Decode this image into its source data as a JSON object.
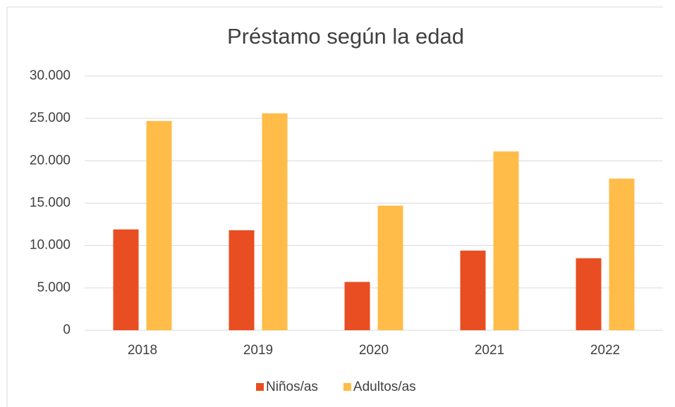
{
  "chart_data": {
    "type": "bar",
    "title": "Préstamo según la edad",
    "categories": [
      "2018",
      "2019",
      "2020",
      "2021",
      "2022"
    ],
    "series": [
      {
        "name": "Niños/as",
        "color": "#e84e22",
        "values": [
          11900,
          11800,
          5700,
          9400,
          8500
        ]
      },
      {
        "name": "Adultos/as",
        "color": "#ffbc48",
        "values": [
          24700,
          25600,
          14700,
          21100,
          17900
        ]
      }
    ],
    "ylim": [
      0,
      30000
    ],
    "yticks": [
      0,
      {
        "value": 5000,
        "label": "5.000"
      },
      {
        "value": 10000,
        "label": "10.000"
      },
      {
        "value": 15000,
        "label": "15.000"
      },
      {
        "value": 20000,
        "label": "20.000"
      },
      {
        "value": 25000,
        "label": "25.000"
      },
      {
        "value": 30000,
        "label": "30.000"
      }
    ],
    "grid": true,
    "legend": "bottom"
  }
}
